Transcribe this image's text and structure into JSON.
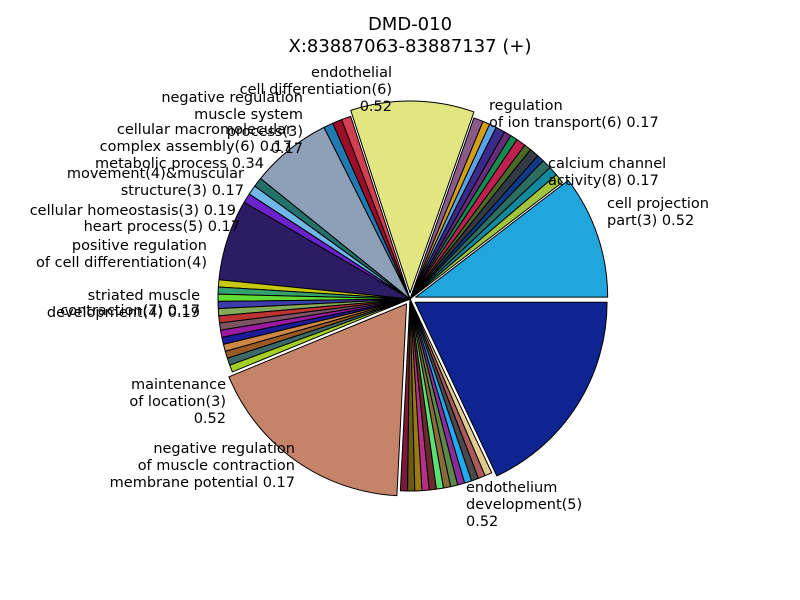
{
  "chart_data": {
    "type": "pie",
    "title_line1": "DMD-010",
    "title_line2": "X:83887063-83887137 (+)",
    "legend": "none",
    "labels": [
      {
        "text": "cell projection\npart(3) 0.52"
      },
      {
        "text": "endothelium\ndevelopment(5)\n0.52"
      },
      {
        "text": "maintenance\nof location(3)\n0.52"
      },
      {
        "text": "endothelial\ncell differentiation(6)\n0.52"
      },
      {
        "text": "negative regulation\nmuscle system\nprocess(3)\n0.17"
      },
      {
        "text": "cellular macromolecular\ncomplex assembly(6) 0.17"
      },
      {
        "text": "metabolic process 0.34"
      },
      {
        "text": "movement(4)&muscular\nstructure(3) 0.17"
      },
      {
        "text": "cellular homeostasis(3) 0.19"
      },
      {
        "text": "heart process(5) 0.17"
      },
      {
        "text": "positive regulation\nof cell differentiation(4)"
      },
      {
        "text": "striated muscle\ndevelopment(4) 0.19"
      },
      {
        "text": "contraction(7) 0.17"
      },
      {
        "text": "negative regulation\nof muscle contraction\nmembrane potential 0.17"
      },
      {
        "text": "regulation\nof ion transport(6) 0.17"
      },
      {
        "text": "calcium channel\nactivity(8) 0.17"
      }
    ],
    "slices": [
      {
        "value": 0.52,
        "color": "#21a5dd"
      },
      {
        "value": 0.04,
        "color": "#a0c43c"
      },
      {
        "value": 0.04,
        "color": "#118a9f"
      },
      {
        "value": 0.04,
        "color": "#2c6e62"
      },
      {
        "value": 0.03,
        "color": "#0f3a8a"
      },
      {
        "value": 0.04,
        "color": "#333a44"
      },
      {
        "value": 0.03,
        "color": "#4a6a2a"
      },
      {
        "value": 0.04,
        "color": "#c02050"
      },
      {
        "value": 0.03,
        "color": "#148c4e"
      },
      {
        "value": 0.03,
        "color": "#6a2a7a"
      },
      {
        "value": 0.04,
        "color": "#3a2a8a"
      },
      {
        "value": 0.03,
        "color": "#5aa2e8"
      },
      {
        "value": 0.03,
        "color": "#d2a016"
      },
      {
        "value": 0.04,
        "color": "#8a5a8a"
      },
      {
        "value": 0.52,
        "color": "#e1e680"
      },
      {
        "value": 0.04,
        "color": "#d04050"
      },
      {
        "value": 0.04,
        "color": "#9a0e28"
      },
      {
        "value": 0.04,
        "color": "#1e7ab0"
      },
      {
        "value": 0.34,
        "color": "#8e9fb8"
      },
      {
        "value": 0.04,
        "color": "#24706a"
      },
      {
        "value": 0.04,
        "color": "#70b8e8"
      },
      {
        "value": 0.04,
        "color": "#6a22cc"
      },
      {
        "value": 0.34,
        "color": "#2c1c64"
      },
      {
        "value": 0.03,
        "color": "#c8c810"
      },
      {
        "value": 0.03,
        "color": "#33a070"
      },
      {
        "value": 0.03,
        "color": "#62dc32"
      },
      {
        "value": 0.03,
        "color": "#3c3caa"
      },
      {
        "value": 0.03,
        "color": "#84aa58"
      },
      {
        "value": 0.03,
        "color": "#bb3333"
      },
      {
        "value": 0.03,
        "color": "#7c5464"
      },
      {
        "value": 0.03,
        "color": "#9a1aa2"
      },
      {
        "value": 0.03,
        "color": "#1c1c9a"
      },
      {
        "value": 0.03,
        "color": "#cc8844"
      },
      {
        "value": 0.03,
        "color": "#9a5a24"
      },
      {
        "value": 0.03,
        "color": "#3c6a6a"
      },
      {
        "value": 0.03,
        "color": "#a4d024"
      },
      {
        "value": 0.9,
        "color": "#c5836a"
      },
      {
        "value": 0.03,
        "color": "#7a1a3a"
      },
      {
        "value": 0.03,
        "color": "#6a5a12"
      },
      {
        "value": 0.03,
        "color": "#9a7a12"
      },
      {
        "value": 0.03,
        "color": "#b62f8a"
      },
      {
        "value": 0.03,
        "color": "#6a2a2a"
      },
      {
        "value": 0.03,
        "color": "#5ae070"
      },
      {
        "value": 0.03,
        "color": "#8a6a3a"
      },
      {
        "value": 0.03,
        "color": "#5a8a4a"
      },
      {
        "value": 0.03,
        "color": "#8a2c9a"
      },
      {
        "value": 0.03,
        "color": "#22aaee"
      },
      {
        "value": 0.03,
        "color": "#4a4a4a"
      },
      {
        "value": 0.03,
        "color": "#aa5a5a"
      },
      {
        "value": 0.03,
        "color": "#e0cc8c"
      },
      {
        "value": 0.9,
        "color": "#0e2490"
      }
    ]
  }
}
